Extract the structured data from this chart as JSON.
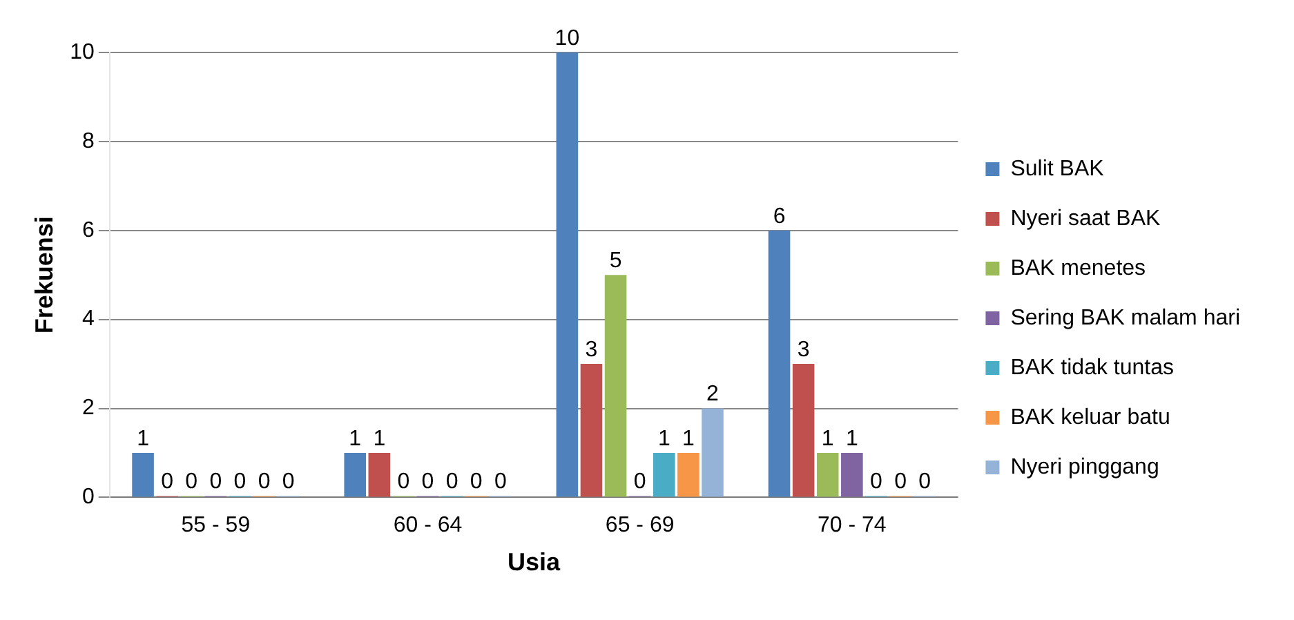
{
  "chart_data": {
    "type": "bar",
    "xlabel": "Usia",
    "ylabel": "Frekuensi",
    "categories": [
      "55 - 59",
      "60 - 64",
      "65 - 69",
      "70 - 74"
    ],
    "series": [
      {
        "name": "Sulit BAK",
        "color": "#4f81bd",
        "values": [
          1,
          1,
          10,
          6
        ]
      },
      {
        "name": "Nyeri saat BAK",
        "color": "#c0504d",
        "values": [
          0,
          1,
          3,
          3
        ]
      },
      {
        "name": "BAK menetes",
        "color": "#9bbb59",
        "values": [
          0,
          0,
          5,
          1
        ]
      },
      {
        "name": "Sering BAK malam hari",
        "color": "#8064a2",
        "values": [
          0,
          0,
          0,
          1
        ]
      },
      {
        "name": "BAK tidak tuntas",
        "color": "#4bacc6",
        "values": [
          0,
          0,
          1,
          0
        ]
      },
      {
        "name": "BAK keluar batu",
        "color": "#f79646",
        "values": [
          0,
          0,
          1,
          0
        ]
      },
      {
        "name": "Nyeri pinggang",
        "color": "#95b3d7",
        "values": [
          0,
          0,
          2,
          0
        ]
      }
    ],
    "ylim": [
      0,
      10
    ],
    "yticks": [
      0,
      2,
      4,
      6,
      8,
      10
    ],
    "grid": "y",
    "legend": "right",
    "data_labels": true
  }
}
